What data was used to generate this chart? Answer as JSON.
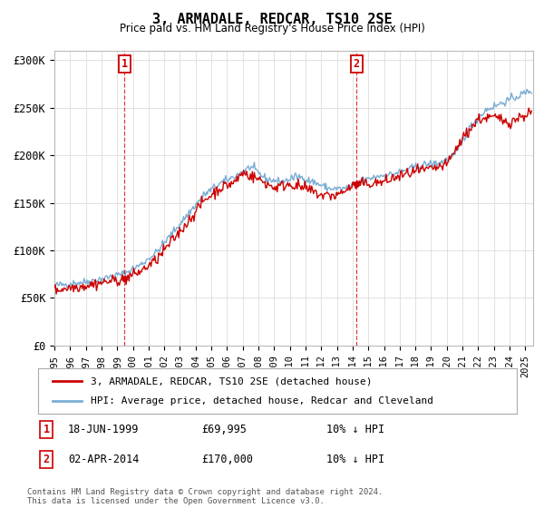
{
  "title": "3, ARMADALE, REDCAR, TS10 2SE",
  "subtitle": "Price paid vs. HM Land Registry's House Price Index (HPI)",
  "xlim_start": 1995.0,
  "xlim_end": 2025.5,
  "ylim_min": 0,
  "ylim_max": 310000,
  "yticks": [
    0,
    50000,
    100000,
    150000,
    200000,
    250000,
    300000
  ],
  "ytick_labels": [
    "£0",
    "£50K",
    "£100K",
    "£150K",
    "£200K",
    "£250K",
    "£300K"
  ],
  "transaction1_x": 1999.46,
  "transaction1_y": 69995,
  "transaction1_label": "1",
  "transaction2_x": 2014.25,
  "transaction2_y": 170000,
  "transaction2_label": "2",
  "legend_line1": "3, ARMADALE, REDCAR, TS10 2SE (detached house)",
  "legend_line2": "HPI: Average price, detached house, Redcar and Cleveland",
  "annotation1_date": "18-JUN-1999",
  "annotation1_price": "£69,995",
  "annotation1_hpi": "10% ↓ HPI",
  "annotation2_date": "02-APR-2014",
  "annotation2_price": "£170,000",
  "annotation2_hpi": "10% ↓ HPI",
  "footer": "Contains HM Land Registry data © Crown copyright and database right 2024.\nThis data is licensed under the Open Government Licence v3.0.",
  "line_color_red": "#cc0000",
  "line_color_blue": "#7aadd4",
  "bg_color": "#ffffff",
  "grid_color": "#dddddd"
}
